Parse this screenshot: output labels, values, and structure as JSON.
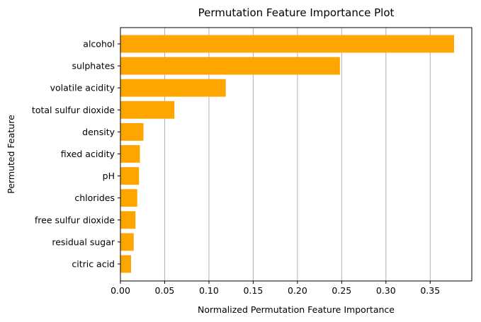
{
  "chart_data": {
    "type": "bar",
    "orientation": "horizontal",
    "title": "Permutation Feature Importance Plot",
    "xlabel": "Normalized Permutation Feature Importance",
    "ylabel": "Permuted Feature",
    "categories": [
      "alcohol",
      "sulphates",
      "volatile acidity",
      "total sulfur dioxide",
      "density",
      "fixed acidity",
      "pH",
      "chlorides",
      "free sulfur dioxide",
      "residual sugar",
      "citric acid"
    ],
    "values": [
      0.377,
      0.248,
      0.119,
      0.061,
      0.026,
      0.022,
      0.021,
      0.019,
      0.017,
      0.015,
      0.012
    ],
    "xlim": [
      0,
      0.397
    ],
    "xticks": [
      0.0,
      0.05,
      0.1,
      0.15,
      0.2,
      0.25,
      0.3,
      0.35
    ],
    "xtick_labels": [
      "0.00",
      "0.05",
      "0.10",
      "0.15",
      "0.20",
      "0.25",
      "0.30",
      "0.35"
    ],
    "grid": "x-axis only",
    "legend": "none",
    "bar_color": "#ffa500",
    "grid_color": "#b0b0b0"
  }
}
